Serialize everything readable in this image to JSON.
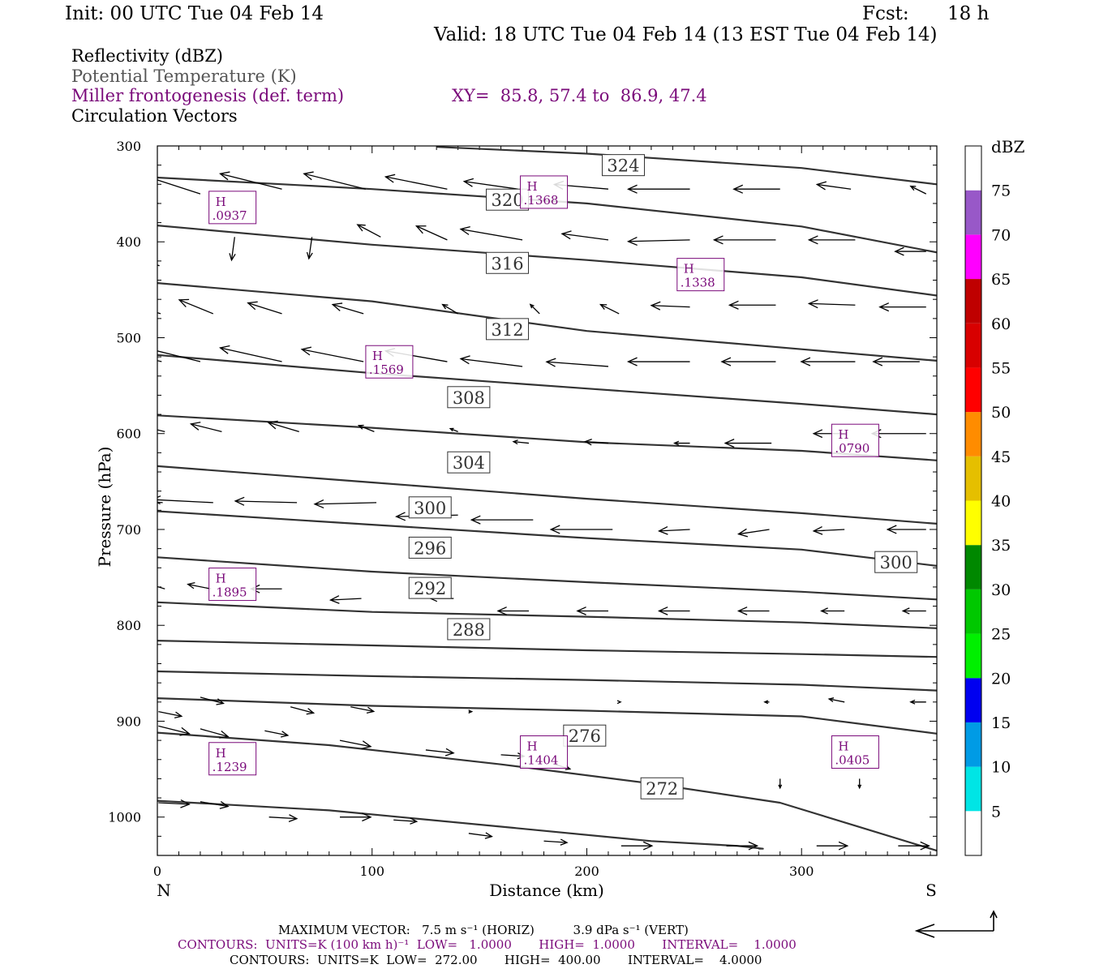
{
  "header": {
    "init": "Init: 00 UTC Tue 04 Feb 14",
    "fcst_label": "Fcst:",
    "fcst_value": "18 h",
    "valid": "Valid: 18 UTC Tue 04 Feb 14 (13 EST Tue 04 Feb 14)"
  },
  "legend": {
    "reflectivity": "Reflectivity (dBZ)",
    "theta": "Potential Temperature (K)",
    "miller": "Miller frontogenesis (def. term)",
    "xy": "XY=  85.8, 57.4 to  86.9, 47.4",
    "vectors": "Circulation Vectors"
  },
  "axes": {
    "ylabel": "Pressure (hPa)",
    "xlabel": "Distance (km)",
    "left_end": "N",
    "right_end": "S"
  },
  "colorbar": {
    "unit": "dBZ",
    "ticks": [
      "5",
      "10",
      "15",
      "20",
      "25",
      "30",
      "35",
      "40",
      "45",
      "50",
      "55",
      "60",
      "65",
      "70",
      "75"
    ],
    "colors": [
      "#00e5e5",
      "#009be5",
      "#0000f0",
      "#00f000",
      "#00c800",
      "#008800",
      "#ffff00",
      "#e5bf00",
      "#ff8c00",
      "#ff0000",
      "#d80000",
      "#bf0000",
      "#ff00ff",
      "#9858c8",
      "#ffffff"
    ]
  },
  "footer": {
    "max_vector": "MAXIMUM VECTOR:   7.5 m s⁻¹ (HORIZ)          3.9 dPa s⁻¹ (VERT)",
    "contours_purple": "CONTOURS:  UNITS=K (100 km h)⁻¹  LOW=   1.0000       HIGH=  1.0000       INTERVAL=    1.0000",
    "contours_black": "CONTOURS:  UNITS=K  LOW=  272.00       HIGH=  400.00       INTERVAL=    4.0000"
  },
  "chart_data": {
    "type": "line",
    "title": "",
    "xlabel": "Distance (km)",
    "ylabel": "Pressure (hPa)",
    "xlim": [
      0,
      363
    ],
    "ylim": [
      1040,
      300
    ],
    "x_ticks": [
      0,
      100,
      200,
      300
    ],
    "y_ticks": [
      300,
      400,
      500,
      600,
      700,
      800,
      900,
      1000
    ],
    "series": [
      {
        "name": "272",
        "x": [
          0,
          80,
          160,
          230,
          270,
          282,
          280
        ],
        "y": [
          983,
          993,
          1010,
          1025,
          1030,
          1033,
          1033
        ]
      },
      {
        "name": "276",
        "x": [
          0,
          80,
          160,
          230,
          290,
          363
        ],
        "y": [
          912,
          925,
          945,
          965,
          985,
          1035
        ]
      },
      {
        "name": "",
        "x": [
          0,
          100,
          200,
          300,
          363
        ],
        "y": [
          876,
          884,
          889,
          895,
          913
        ]
      },
      {
        "name": "",
        "x": [
          0,
          100,
          200,
          300,
          363
        ],
        "y": [
          848,
          853,
          857,
          862,
          868
        ]
      },
      {
        "name": "",
        "x": [
          0,
          100,
          200,
          300,
          363
        ],
        "y": [
          816,
          821,
          826,
          830,
          833
        ]
      },
      {
        "name": "288",
        "x": [
          0,
          100,
          200,
          300,
          363
        ],
        "y": [
          776,
          786,
          791,
          797,
          803
        ]
      },
      {
        "name": "292",
        "x": [
          0,
          100,
          200,
          300,
          363
        ],
        "y": [
          729,
          744,
          755,
          765,
          773
        ]
      },
      {
        "name": "296",
        "x": [
          0,
          100,
          200,
          300,
          363
        ],
        "y": [
          681,
          695,
          709,
          721,
          738
        ]
      },
      {
        "name": "300",
        "x": [
          0,
          100,
          200,
          300,
          363
        ],
        "y": [
          634,
          651,
          668,
          683,
          694
        ]
      },
      {
        "name": "304",
        "x": [
          0,
          100,
          200,
          300,
          363
        ],
        "y": [
          581,
          594,
          609,
          618,
          628
        ]
      },
      {
        "name": "308",
        "x": [
          0,
          100,
          200,
          300,
          363
        ],
        "y": [
          518,
          537,
          553,
          569,
          580
        ]
      },
      {
        "name": "312",
        "x": [
          0,
          100,
          200,
          300,
          363
        ],
        "y": [
          443,
          462,
          493,
          512,
          524
        ]
      },
      {
        "name": "316",
        "x": [
          0,
          100,
          200,
          300,
          363
        ],
        "y": [
          383,
          403,
          419,
          437,
          456
        ]
      },
      {
        "name": "320",
        "x": [
          0,
          100,
          200,
          300,
          363
        ],
        "y": [
          333,
          345,
          360,
          384,
          411
        ]
      },
      {
        "name": "324",
        "x": [
          130,
          200,
          300,
          363
        ],
        "y": [
          301,
          308,
          323,
          340
        ]
      }
    ],
    "theta_labels": [
      {
        "text": "324",
        "x": 217,
        "y": 320
      },
      {
        "text": "320",
        "x": 163,
        "y": 356
      },
      {
        "text": "316",
        "x": 163,
        "y": 422
      },
      {
        "text": "312",
        "x": 163,
        "y": 491
      },
      {
        "text": "308",
        "x": 145,
        "y": 562
      },
      {
        "text": "304",
        "x": 145,
        "y": 630
      },
      {
        "text": "300",
        "x": 127,
        "y": 677
      },
      {
        "text": "296",
        "x": 127,
        "y": 719
      },
      {
        "text": "292",
        "x": 127,
        "y": 761
      },
      {
        "text": "288",
        "x": 145,
        "y": 804
      },
      {
        "text": "276",
        "x": 199,
        "y": 915
      },
      {
        "text": "272",
        "x": 235,
        "y": 970
      },
      {
        "text": "300",
        "x": 344,
        "y": 734
      }
    ],
    "highs": [
      {
        "label": "H",
        "value": ".0937",
        "x": 35,
        "y": 365
      },
      {
        "label": "H",
        "value": ".1368",
        "x": 180,
        "y": 349
      },
      {
        "label": "H",
        "value": ".1338",
        "x": 253,
        "y": 435
      },
      {
        "label": "H",
        "value": ".1569",
        "x": 108,
        "y": 526
      },
      {
        "label": "H",
        "value": ".0790",
        "x": 325,
        "y": 608
      },
      {
        "label": "H",
        "value": ".1895",
        "x": 35,
        "y": 758
      },
      {
        "label": "H",
        "value": ".1239",
        "x": 35,
        "y": 940
      },
      {
        "label": "H",
        "value": ".1404",
        "x": 180,
        "y": 933
      },
      {
        "label": "H",
        "value": ".0405",
        "x": 325,
        "y": 933
      }
    ],
    "vectors": [
      {
        "x": 0.5,
        "y": 360,
        "u": -4.0,
        "w": -1.3
      },
      {
        "x": 1.0,
        "y": 425,
        "u": -3.5,
        "w": -1.1
      },
      {
        "x": 1.5,
        "y": 475,
        "u": -2.8,
        "w": -0.9
      },
      {
        "x": 2.0,
        "y": 525,
        "u": -4.5,
        "w": -1.1
      },
      {
        "x": 3.5,
        "y": 598,
        "u": -2.5,
        "w": -0.6
      },
      {
        "x": 2.5,
        "y": 672,
        "u": -4.0,
        "w": -0.3
      },
      {
        "x": 3.5,
        "y": 762,
        "u": -1.0,
        "w": -0.3
      },
      {
        "x": 0.5,
        "y": 890,
        "u": 1.5,
        "w": 0.3
      },
      {
        "x": 0.5,
        "y": 905,
        "u": 2.0,
        "w": 0.5
      },
      {
        "x": 0.5,
        "y": 985,
        "u": 2.0,
        "w": 0.1
      },
      {
        "x": 20.0,
        "y": 350,
        "u": -4.0,
        "w": -1.3
      },
      {
        "x": 36.0,
        "y": 395,
        "u": -0.2,
        "w": 1.5
      },
      {
        "x": 26.0,
        "y": 475,
        "u": -2.2,
        "w": -0.9
      },
      {
        "x": 20.0,
        "y": 525,
        "u": -4.0,
        "w": -1.0
      },
      {
        "x": 30.0,
        "y": 598,
        "u": -2.0,
        "w": -0.5
      },
      {
        "x": 26.0,
        "y": 672,
        "u": -4.0,
        "w": -0.2
      },
      {
        "x": 25.0,
        "y": 762,
        "u": -1.5,
        "w": -0.3
      },
      {
        "x": 20.0,
        "y": 875,
        "u": 1.5,
        "w": 0.4
      },
      {
        "x": 20.0,
        "y": 908,
        "u": 1.8,
        "w": 0.5
      },
      {
        "x": 20.0,
        "y": 984,
        "u": 1.8,
        "w": 0.3
      },
      {
        "x": 58.0,
        "y": 345,
        "u": -4.0,
        "w": -1.0
      },
      {
        "x": 72.0,
        "y": 395,
        "u": -0.2,
        "w": 1.4
      },
      {
        "x": 58.0,
        "y": 475,
        "u": -2.2,
        "w": -0.7
      },
      {
        "x": 58.0,
        "y": 525,
        "u": -4.0,
        "w": -0.9
      },
      {
        "x": 66.0,
        "y": 598,
        "u": -2.0,
        "w": -0.6
      },
      {
        "x": 65.0,
        "y": 672,
        "u": -4.0,
        "w": -0.1
      },
      {
        "x": 58.0,
        "y": 762,
        "u": -2.0,
        "w": 0.0
      },
      {
        "x": 62.0,
        "y": 885,
        "u": 1.5,
        "w": 0.4
      },
      {
        "x": 50.0,
        "y": 910,
        "u": 1.5,
        "w": 0.3
      },
      {
        "x": 52.0,
        "y": 1000,
        "u": 1.8,
        "w": 0.1
      },
      {
        "x": 97.0,
        "y": 345,
        "u": -4.0,
        "w": -1.0
      },
      {
        "x": 104.0,
        "y": 395,
        "u": -1.5,
        "w": -0.8
      },
      {
        "x": 96.0,
        "y": 475,
        "u": -2.0,
        "w": -0.6
      },
      {
        "x": 96.0,
        "y": 525,
        "u": -4.0,
        "w": -0.8
      },
      {
        "x": 101.0,
        "y": 598,
        "u": -1.0,
        "w": -0.4
      },
      {
        "x": 102.0,
        "y": 672,
        "u": -4.0,
        "w": 0.1
      },
      {
        "x": 95.0,
        "y": 772,
        "u": -2.0,
        "w": 0.1
      },
      {
        "x": 90.0,
        "y": 885,
        "u": 1.5,
        "w": 0.3
      },
      {
        "x": 85.0,
        "y": 920,
        "u": 2.0,
        "w": 0.4
      },
      {
        "x": 85.0,
        "y": 1000,
        "u": 2.0,
        "w": 0.0
      },
      {
        "x": 135.0,
        "y": 345,
        "u": -4.0,
        "w": -0.8
      },
      {
        "x": 135.0,
        "y": 398,
        "u": -2.0,
        "w": -0.9
      },
      {
        "x": 140.0,
        "y": 475,
        "u": -1.0,
        "w": -0.6
      },
      {
        "x": 135.0,
        "y": 525,
        "u": -4.0,
        "w": -0.7
      },
      {
        "x": 140.0,
        "y": 598,
        "u": -0.5,
        "w": -0.2
      },
      {
        "x": 140.0,
        "y": 685,
        "u": -4.0,
        "w": 0.1
      },
      {
        "x": 138.0,
        "y": 772,
        "u": -1.5,
        "w": 0.0
      },
      {
        "x": 145.0,
        "y": 890,
        "u": 0.2,
        "w": 0.0
      },
      {
        "x": 125.0,
        "y": 930,
        "u": 1.8,
        "w": 0.2
      },
      {
        "x": 110.0,
        "y": 1003,
        "u": 1.5,
        "w": 0.1
      },
      {
        "x": 168.0,
        "y": 345,
        "u": -3.5,
        "w": -0.5
      },
      {
        "x": 170.0,
        "y": 398,
        "u": -4.0,
        "w": -0.7
      },
      {
        "x": 178.0,
        "y": 475,
        "u": -0.6,
        "w": -0.6
      },
      {
        "x": 170.0,
        "y": 530,
        "u": -4.0,
        "w": -0.5
      },
      {
        "x": 173.0,
        "y": 610,
        "u": -1.0,
        "w": -0.1
      },
      {
        "x": 175.0,
        "y": 690,
        "u": -4.0,
        "w": 0.0
      },
      {
        "x": 173.0,
        "y": 785,
        "u": -2.0,
        "w": 0.0
      },
      {
        "x": 180.0,
        "y": 890,
        "u": 0.0,
        "w": 0.0
      },
      {
        "x": 160.0,
        "y": 935,
        "u": 1.5,
        "w": 0.1
      },
      {
        "x": 145.0,
        "y": 1017,
        "u": 1.5,
        "w": 0.2
      },
      {
        "x": 210.0,
        "y": 345,
        "u": -3.5,
        "w": -0.3
      },
      {
        "x": 210.0,
        "y": 398,
        "u": -3.0,
        "w": -0.4
      },
      {
        "x": 215.0,
        "y": 475,
        "u": -1.2,
        "w": -0.6
      },
      {
        "x": 210.0,
        "y": 530,
        "u": -4.0,
        "w": -0.3
      },
      {
        "x": 210.0,
        "y": 610,
        "u": -1.5,
        "w": -0.1
      },
      {
        "x": 212.0,
        "y": 700,
        "u": -4.0,
        "w": 0.0
      },
      {
        "x": 210.0,
        "y": 785,
        "u": -2.0,
        "w": 0.0
      },
      {
        "x": 215.0,
        "y": 880,
        "u": 0.1,
        "w": 0.0
      },
      {
        "x": 185.0,
        "y": 945,
        "u": 1.0,
        "w": 0.3
      },
      {
        "x": 180.0,
        "y": 1025,
        "u": 1.5,
        "w": 0.1
      },
      {
        "x": 248.0,
        "y": 345,
        "u": -4.0,
        "w": 0.0
      },
      {
        "x": 248.0,
        "y": 398,
        "u": -4.0,
        "w": 0.1
      },
      {
        "x": 248.0,
        "y": 468,
        "u": -2.5,
        "w": -0.1
      },
      {
        "x": 248.0,
        "y": 525,
        "u": -4.0,
        "w": 0.0
      },
      {
        "x": 248.0,
        "y": 610,
        "u": -1.0,
        "w": 0.0
      },
      {
        "x": 248.0,
        "y": 700,
        "u": -2.0,
        "w": 0.1
      },
      {
        "x": 248.0,
        "y": 785,
        "u": -2.0,
        "w": 0.0
      },
      {
        "x": 240.0,
        "y": 960,
        "u": -0.1,
        "w": 0.6
      },
      {
        "x": 216.0,
        "y": 1030,
        "u": 2.0,
        "w": 0.0
      },
      {
        "x": 290.0,
        "y": 345,
        "u": -3.0,
        "w": 0.0
      },
      {
        "x": 288.0,
        "y": 398,
        "u": -4.0,
        "w": 0.0
      },
      {
        "x": 288.0,
        "y": 466,
        "u": -3.0,
        "w": 0.0
      },
      {
        "x": 288.0,
        "y": 525,
        "u": -3.5,
        "w": 0.0
      },
      {
        "x": 286.0,
        "y": 610,
        "u": -3.0,
        "w": 0.0
      },
      {
        "x": 285.0,
        "y": 700,
        "u": -2.0,
        "w": 0.3
      },
      {
        "x": 285.0,
        "y": 785,
        "u": -2.0,
        "w": 0.0
      },
      {
        "x": 285.0,
        "y": 880,
        "u": -0.3,
        "w": 0.0
      },
      {
        "x": 290.0,
        "y": 960,
        "u": 0.0,
        "w": 0.6
      },
      {
        "x": 265.0,
        "y": 1030,
        "u": 2.0,
        "w": 0.0
      },
      {
        "x": 323.0,
        "y": 345,
        "u": -2.2,
        "w": -0.3
      },
      {
        "x": 325.0,
        "y": 398,
        "u": -3.0,
        "w": 0.0
      },
      {
        "x": 325.0,
        "y": 466,
        "u": -3.0,
        "w": -0.1
      },
      {
        "x": 325.0,
        "y": 525,
        "u": -3.5,
        "w": 0.0
      },
      {
        "x": 320.0,
        "y": 600,
        "u": -2.0,
        "w": 0.0
      },
      {
        "x": 320.0,
        "y": 700,
        "u": -2.0,
        "w": 0.1
      },
      {
        "x": 320.0,
        "y": 785,
        "u": -1.5,
        "w": 0.0
      },
      {
        "x": 320.0,
        "y": 880,
        "u": -1.0,
        "w": -0.2
      },
      {
        "x": 327.0,
        "y": 960,
        "u": 0.0,
        "w": 0.6
      },
      {
        "x": 307.0,
        "y": 1030,
        "u": 2.0,
        "w": 0.0
      },
      {
        "x": 358.0,
        "y": 350,
        "u": -1.0,
        "w": -0.5
      },
      {
        "x": 358.0,
        "y": 410,
        "u": -2.0,
        "w": 0.0
      },
      {
        "x": 358.0,
        "y": 468,
        "u": -3.0,
        "w": 0.0
      },
      {
        "x": 355.0,
        "y": 525,
        "u": -3.0,
        "w": 0.0
      },
      {
        "x": 358.0,
        "y": 600,
        "u": -3.5,
        "w": 0.0
      },
      {
        "x": 358.0,
        "y": 700,
        "u": -2.5,
        "w": 0.0
      },
      {
        "x": 358.0,
        "y": 785,
        "u": -1.5,
        "w": 0.0
      },
      {
        "x": 358.0,
        "y": 880,
        "u": -1.0,
        "w": 0.0
      },
      {
        "x": 345.0,
        "y": 1030,
        "u": 2.0,
        "w": 0.0
      }
    ]
  }
}
